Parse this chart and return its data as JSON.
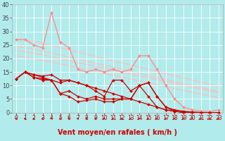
{
  "background_color": "#b2ebeb",
  "grid_color": "#c8e8e8",
  "xlabel": "Vent moyen/en rafales ( km/h )",
  "xlabel_color": "#cc0000",
  "xlabel_fontsize": 7,
  "xtick_fontsize": 5.5,
  "ytick_fontsize": 6,
  "xlim": [
    -0.5,
    23.5
  ],
  "ylim": [
    0,
    40
  ],
  "yticks": [
    0,
    5,
    10,
    15,
    20,
    25,
    30,
    35,
    40
  ],
  "xticks": [
    0,
    1,
    2,
    3,
    4,
    5,
    6,
    7,
    8,
    9,
    10,
    11,
    12,
    13,
    14,
    15,
    16,
    17,
    18,
    19,
    20,
    21,
    22,
    23
  ],
  "lines": [
    {
      "x": [
        0,
        1,
        2,
        3,
        4,
        5,
        6,
        7,
        8,
        9,
        10,
        11,
        12,
        13,
        14,
        15,
        16,
        17,
        18,
        19,
        20,
        21,
        22,
        23
      ],
      "y": [
        27,
        26.8,
        26.2,
        25.5,
        24.8,
        24.0,
        23.2,
        22.4,
        21.6,
        20.8,
        20.0,
        19.2,
        18.4,
        17.6,
        16.8,
        16.0,
        15.2,
        14.4,
        13.6,
        12.8,
        12.0,
        11.2,
        10.4,
        9.6
      ],
      "color": "#ffbbbb",
      "linewidth": 0.8,
      "marker": null,
      "zorder": 1
    },
    {
      "x": [
        0,
        1,
        2,
        3,
        4,
        5,
        6,
        7,
        8,
        9,
        10,
        11,
        12,
        13,
        14,
        15,
        16,
        17,
        18,
        19,
        20,
        21,
        22,
        23
      ],
      "y": [
        24.5,
        24.0,
        23.4,
        22.7,
        22.0,
        21.3,
        20.5,
        19.8,
        19.0,
        18.3,
        17.5,
        16.8,
        16.0,
        15.3,
        14.5,
        13.8,
        13.0,
        12.3,
        11.5,
        10.8,
        10.0,
        9.3,
        8.5,
        7.8
      ],
      "color": "#ffbbbb",
      "linewidth": 0.8,
      "marker": null,
      "zorder": 1
    },
    {
      "x": [
        0,
        1,
        2,
        3,
        4,
        5,
        6,
        7,
        8,
        9,
        10,
        11,
        12,
        13,
        14,
        15,
        16,
        17,
        18,
        19,
        20,
        21,
        22,
        23
      ],
      "y": [
        23.0,
        22.5,
        21.9,
        21.3,
        20.6,
        19.9,
        19.2,
        18.5,
        17.8,
        17.1,
        16.4,
        15.7,
        15.0,
        14.3,
        13.6,
        12.9,
        12.2,
        11.5,
        10.8,
        10.1,
        9.4,
        8.7,
        8.0,
        7.3
      ],
      "color": "#ffbbbb",
      "linewidth": 0.8,
      "marker": null,
      "zorder": 1
    },
    {
      "x": [
        0,
        1,
        2,
        3,
        4,
        5,
        6,
        7,
        8,
        9,
        10,
        11,
        12,
        13,
        14,
        15,
        16,
        17,
        18,
        19,
        20,
        21,
        22,
        23
      ],
      "y": [
        21.0,
        20.5,
        19.9,
        19.3,
        18.6,
        18.0,
        17.3,
        16.6,
        15.9,
        15.2,
        14.5,
        13.8,
        13.1,
        12.4,
        11.7,
        11.0,
        10.3,
        9.6,
        8.9,
        8.2,
        7.5,
        6.8,
        6.1,
        5.4
      ],
      "color": "#ffbbbb",
      "linewidth": 0.8,
      "marker": null,
      "zorder": 1
    },
    {
      "x": [
        0,
        1,
        2,
        3,
        4,
        5,
        6,
        7,
        8,
        9,
        10,
        11,
        12,
        13,
        14,
        15,
        16,
        17,
        18,
        19,
        20,
        21,
        22,
        23
      ],
      "y": [
        27,
        27,
        25,
        24,
        37,
        26,
        24,
        16,
        15,
        16,
        15,
        16,
        15,
        16,
        21,
        21,
        16,
        10,
        5,
        2,
        1,
        0.5,
        0.3,
        1
      ],
      "color": "#ff8888",
      "linewidth": 0.9,
      "marker": "D",
      "markersize": 2,
      "zorder": 2
    },
    {
      "x": [
        0,
        1,
        2,
        3,
        4,
        5,
        6,
        7,
        8,
        9,
        10,
        11,
        12,
        13,
        14,
        15,
        16,
        17,
        18,
        19,
        20,
        21,
        22,
        23
      ],
      "y": [
        12.5,
        15,
        14,
        13.5,
        14,
        12,
        12,
        11,
        10,
        8,
        6,
        12,
        12,
        8,
        10,
        11,
        6,
        2,
        1,
        0.5,
        0.2,
        0,
        0,
        0
      ],
      "color": "#cc0000",
      "linewidth": 0.9,
      "marker": "D",
      "markersize": 2,
      "zorder": 3
    },
    {
      "x": [
        0,
        1,
        2,
        3,
        4,
        5,
        6,
        7,
        8,
        9,
        10,
        11,
        12,
        13,
        14,
        15,
        16,
        17,
        18,
        19,
        20,
        21,
        22,
        23
      ],
      "y": [
        12.5,
        15,
        13,
        12.5,
        12,
        7,
        8,
        6,
        5,
        6,
        5,
        5,
        5,
        5,
        10,
        11,
        6,
        2,
        0.5,
        0,
        0,
        0,
        0,
        0
      ],
      "color": "#cc0000",
      "linewidth": 0.9,
      "marker": "D",
      "markersize": 2,
      "zorder": 3
    },
    {
      "x": [
        0,
        1,
        2,
        3,
        4,
        5,
        6,
        7,
        8,
        9,
        10,
        11,
        12,
        13,
        14,
        15,
        16,
        17,
        18,
        19,
        20,
        21,
        22,
        23
      ],
      "y": [
        12.5,
        15,
        13,
        12,
        12,
        7,
        6,
        4,
        4.5,
        5,
        4,
        4,
        5,
        5,
        10,
        6,
        2,
        1,
        0.5,
        0,
        0,
        0,
        0,
        0
      ],
      "color": "#cc0000",
      "linewidth": 0.9,
      "marker": "D",
      "markersize": 2,
      "zorder": 3
    },
    {
      "x": [
        0,
        1,
        2,
        3,
        4,
        5,
        6,
        7,
        8,
        9,
        10,
        11,
        12,
        13,
        14,
        15,
        16,
        17,
        18,
        19,
        20,
        21,
        22,
        23
      ],
      "y": [
        12.5,
        15,
        14,
        13,
        12,
        11,
        12,
        11,
        10,
        9,
        8,
        7,
        6,
        5,
        4,
        3,
        2,
        1,
        0.5,
        0.2,
        0.1,
        0,
        0,
        0
      ],
      "color": "#cc0000",
      "linewidth": 0.9,
      "marker": "D",
      "markersize": 2,
      "zorder": 3
    }
  ],
  "arrow_color": "#cc0000",
  "arrow_angles": [
    210,
    200,
    210,
    205,
    215,
    210,
    200,
    185,
    195,
    210,
    200,
    205,
    215,
    210,
    205,
    200,
    195,
    205,
    195,
    205,
    200,
    195,
    195,
    200
  ]
}
